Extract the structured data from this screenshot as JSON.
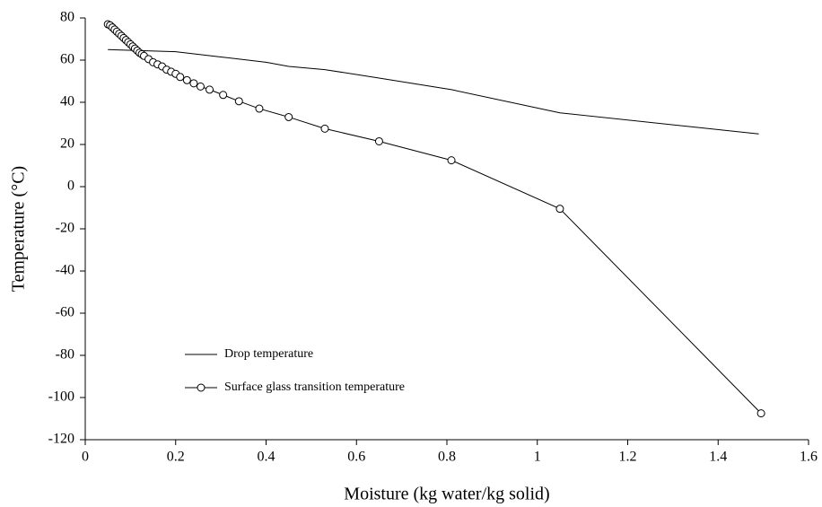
{
  "chart_data": {
    "type": "line",
    "xlabel": "Moisture (kg water/kg solid)",
    "ylabel": "Temperature (°C)",
    "xlim": [
      0,
      1.6
    ],
    "xticks": [
      0,
      0.2,
      0.4,
      0.6,
      0.8,
      1,
      1.2,
      1.4,
      1.6
    ],
    "ylim": [
      -120,
      80
    ],
    "yticks": [
      -120,
      -100,
      -80,
      -60,
      -40,
      -20,
      0,
      20,
      40,
      60,
      80
    ],
    "grid": false,
    "legend": "lower left",
    "series": [
      {
        "name": "Drop temperature",
        "color": "#000000",
        "marker": false,
        "x": [
          0.05,
          0.2,
          0.3,
          0.4,
          0.45,
          0.53,
          0.65,
          0.81,
          1.05,
          1.49
        ],
        "values": [
          65,
          64,
          61.5,
          59,
          57,
          55.5,
          51.5,
          46,
          35,
          25
        ]
      },
      {
        "name": "Surface glass transition temperature",
        "color": "#000000",
        "marker": true,
        "x": [
          0.05,
          0.055,
          0.06,
          0.065,
          0.07,
          0.075,
          0.08,
          0.085,
          0.09,
          0.095,
          0.1,
          0.105,
          0.11,
          0.115,
          0.12,
          0.125,
          0.13,
          0.14,
          0.15,
          0.16,
          0.17,
          0.18,
          0.19,
          0.2,
          0.21,
          0.225,
          0.24,
          0.255,
          0.275,
          0.305,
          0.34,
          0.385,
          0.45,
          0.53,
          0.65,
          0.81,
          1.05,
          1.495
        ],
        "values": [
          77,
          76.5,
          75.5,
          74.5,
          73.5,
          72.5,
          71.5,
          70.5,
          69.5,
          68.5,
          67.5,
          66.5,
          65.5,
          64.5,
          63.5,
          62.8,
          62,
          60.5,
          59,
          58,
          57,
          55.5,
          54.5,
          53.5,
          52,
          50.5,
          49,
          47.5,
          46,
          43.5,
          40.5,
          37,
          33,
          27.5,
          21.5,
          12.5,
          -10.5,
          -107.5
        ]
      }
    ]
  }
}
